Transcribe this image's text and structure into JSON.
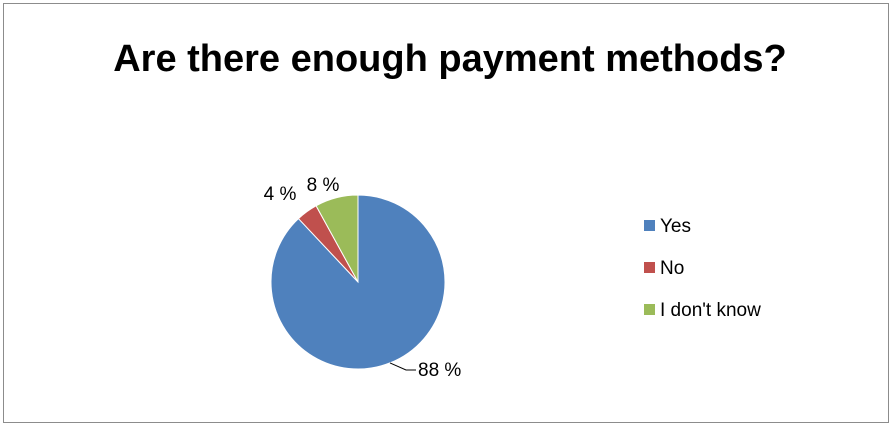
{
  "chart_data": {
    "type": "pie",
    "title": "Are there enough payment methods?",
    "categories": [
      "Yes",
      "No",
      "I don't know"
    ],
    "values": [
      88,
      4,
      8
    ],
    "data_labels": [
      "88 %",
      "4 %",
      "8 %"
    ],
    "colors": [
      "#4f81bd",
      "#c0504d",
      "#9bbb59"
    ],
    "legend": "right"
  }
}
